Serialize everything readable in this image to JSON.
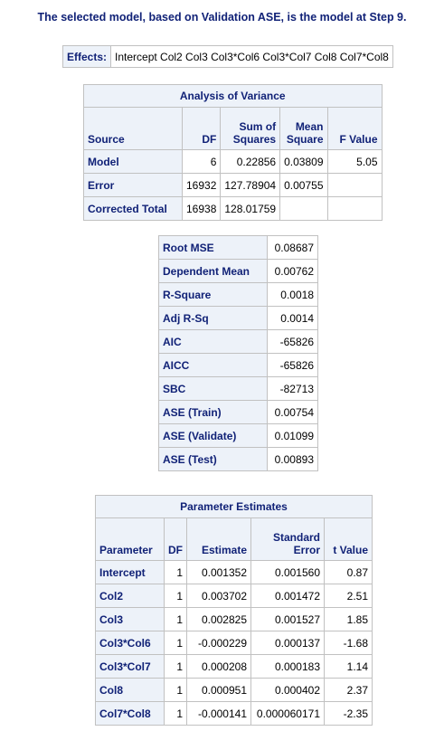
{
  "title": "The selected model, based on Validation ASE, is the model at Step 9.",
  "effects": {
    "label": "Effects:",
    "value": "Intercept Col2 Col3 Col3*Col6 Col3*Col7 Col8 Col7*Col8"
  },
  "anova": {
    "caption": "Analysis of Variance",
    "headers": {
      "source": "Source",
      "df": "DF",
      "ss_line1": "Sum of",
      "ss_line2": "Squares",
      "ms_line1": "Mean",
      "ms_line2": "Square",
      "f": "F Value"
    },
    "rows": [
      {
        "source": "Model",
        "df": "6",
        "ss": "0.22856",
        "ms": "0.03809",
        "f": "5.05"
      },
      {
        "source": "Error",
        "df": "16932",
        "ss": "127.78904",
        "ms": "0.00755",
        "f": ""
      },
      {
        "source": "Corrected Total",
        "df": "16938",
        "ss": "128.01759",
        "ms": "",
        "f": ""
      }
    ]
  },
  "fit": {
    "rows": [
      {
        "label": "Root MSE",
        "value": "0.08687"
      },
      {
        "label": "Dependent Mean",
        "value": "0.00762"
      },
      {
        "label": "R-Square",
        "value": "0.0018"
      },
      {
        "label": "Adj R-Sq",
        "value": "0.0014"
      },
      {
        "label": "AIC",
        "value": "-65826"
      },
      {
        "label": "AICC",
        "value": "-65826"
      },
      {
        "label": "SBC",
        "value": "-82713"
      },
      {
        "label": "ASE (Train)",
        "value": "0.00754"
      },
      {
        "label": "ASE (Validate)",
        "value": "0.01099"
      },
      {
        "label": "ASE (Test)",
        "value": "0.00893"
      }
    ]
  },
  "params": {
    "caption": "Parameter Estimates",
    "headers": {
      "parameter": "Parameter",
      "df": "DF",
      "estimate": "Estimate",
      "se_line1": "Standard",
      "se_line2": "Error",
      "t": "t Value"
    },
    "rows": [
      {
        "parameter": "Intercept",
        "df": "1",
        "estimate": "0.001352",
        "se": "0.001560",
        "t": "0.87"
      },
      {
        "parameter": "Col2",
        "df": "1",
        "estimate": "0.003702",
        "se": "0.001472",
        "t": "2.51"
      },
      {
        "parameter": "Col3",
        "df": "1",
        "estimate": "0.002825",
        "se": "0.001527",
        "t": "1.85"
      },
      {
        "parameter": "Col3*Col6",
        "df": "1",
        "estimate": "-0.000229",
        "se": "0.000137",
        "t": "-1.68"
      },
      {
        "parameter": "Col3*Col7",
        "df": "1",
        "estimate": "0.000208",
        "se": "0.000183",
        "t": "1.14"
      },
      {
        "parameter": "Col8",
        "df": "1",
        "estimate": "0.000951",
        "se": "0.000402",
        "t": "2.37"
      },
      {
        "parameter": "Col7*Col8",
        "df": "1",
        "estimate": "-0.000141",
        "se": "0.000060171",
        "t": "-2.35"
      }
    ]
  }
}
